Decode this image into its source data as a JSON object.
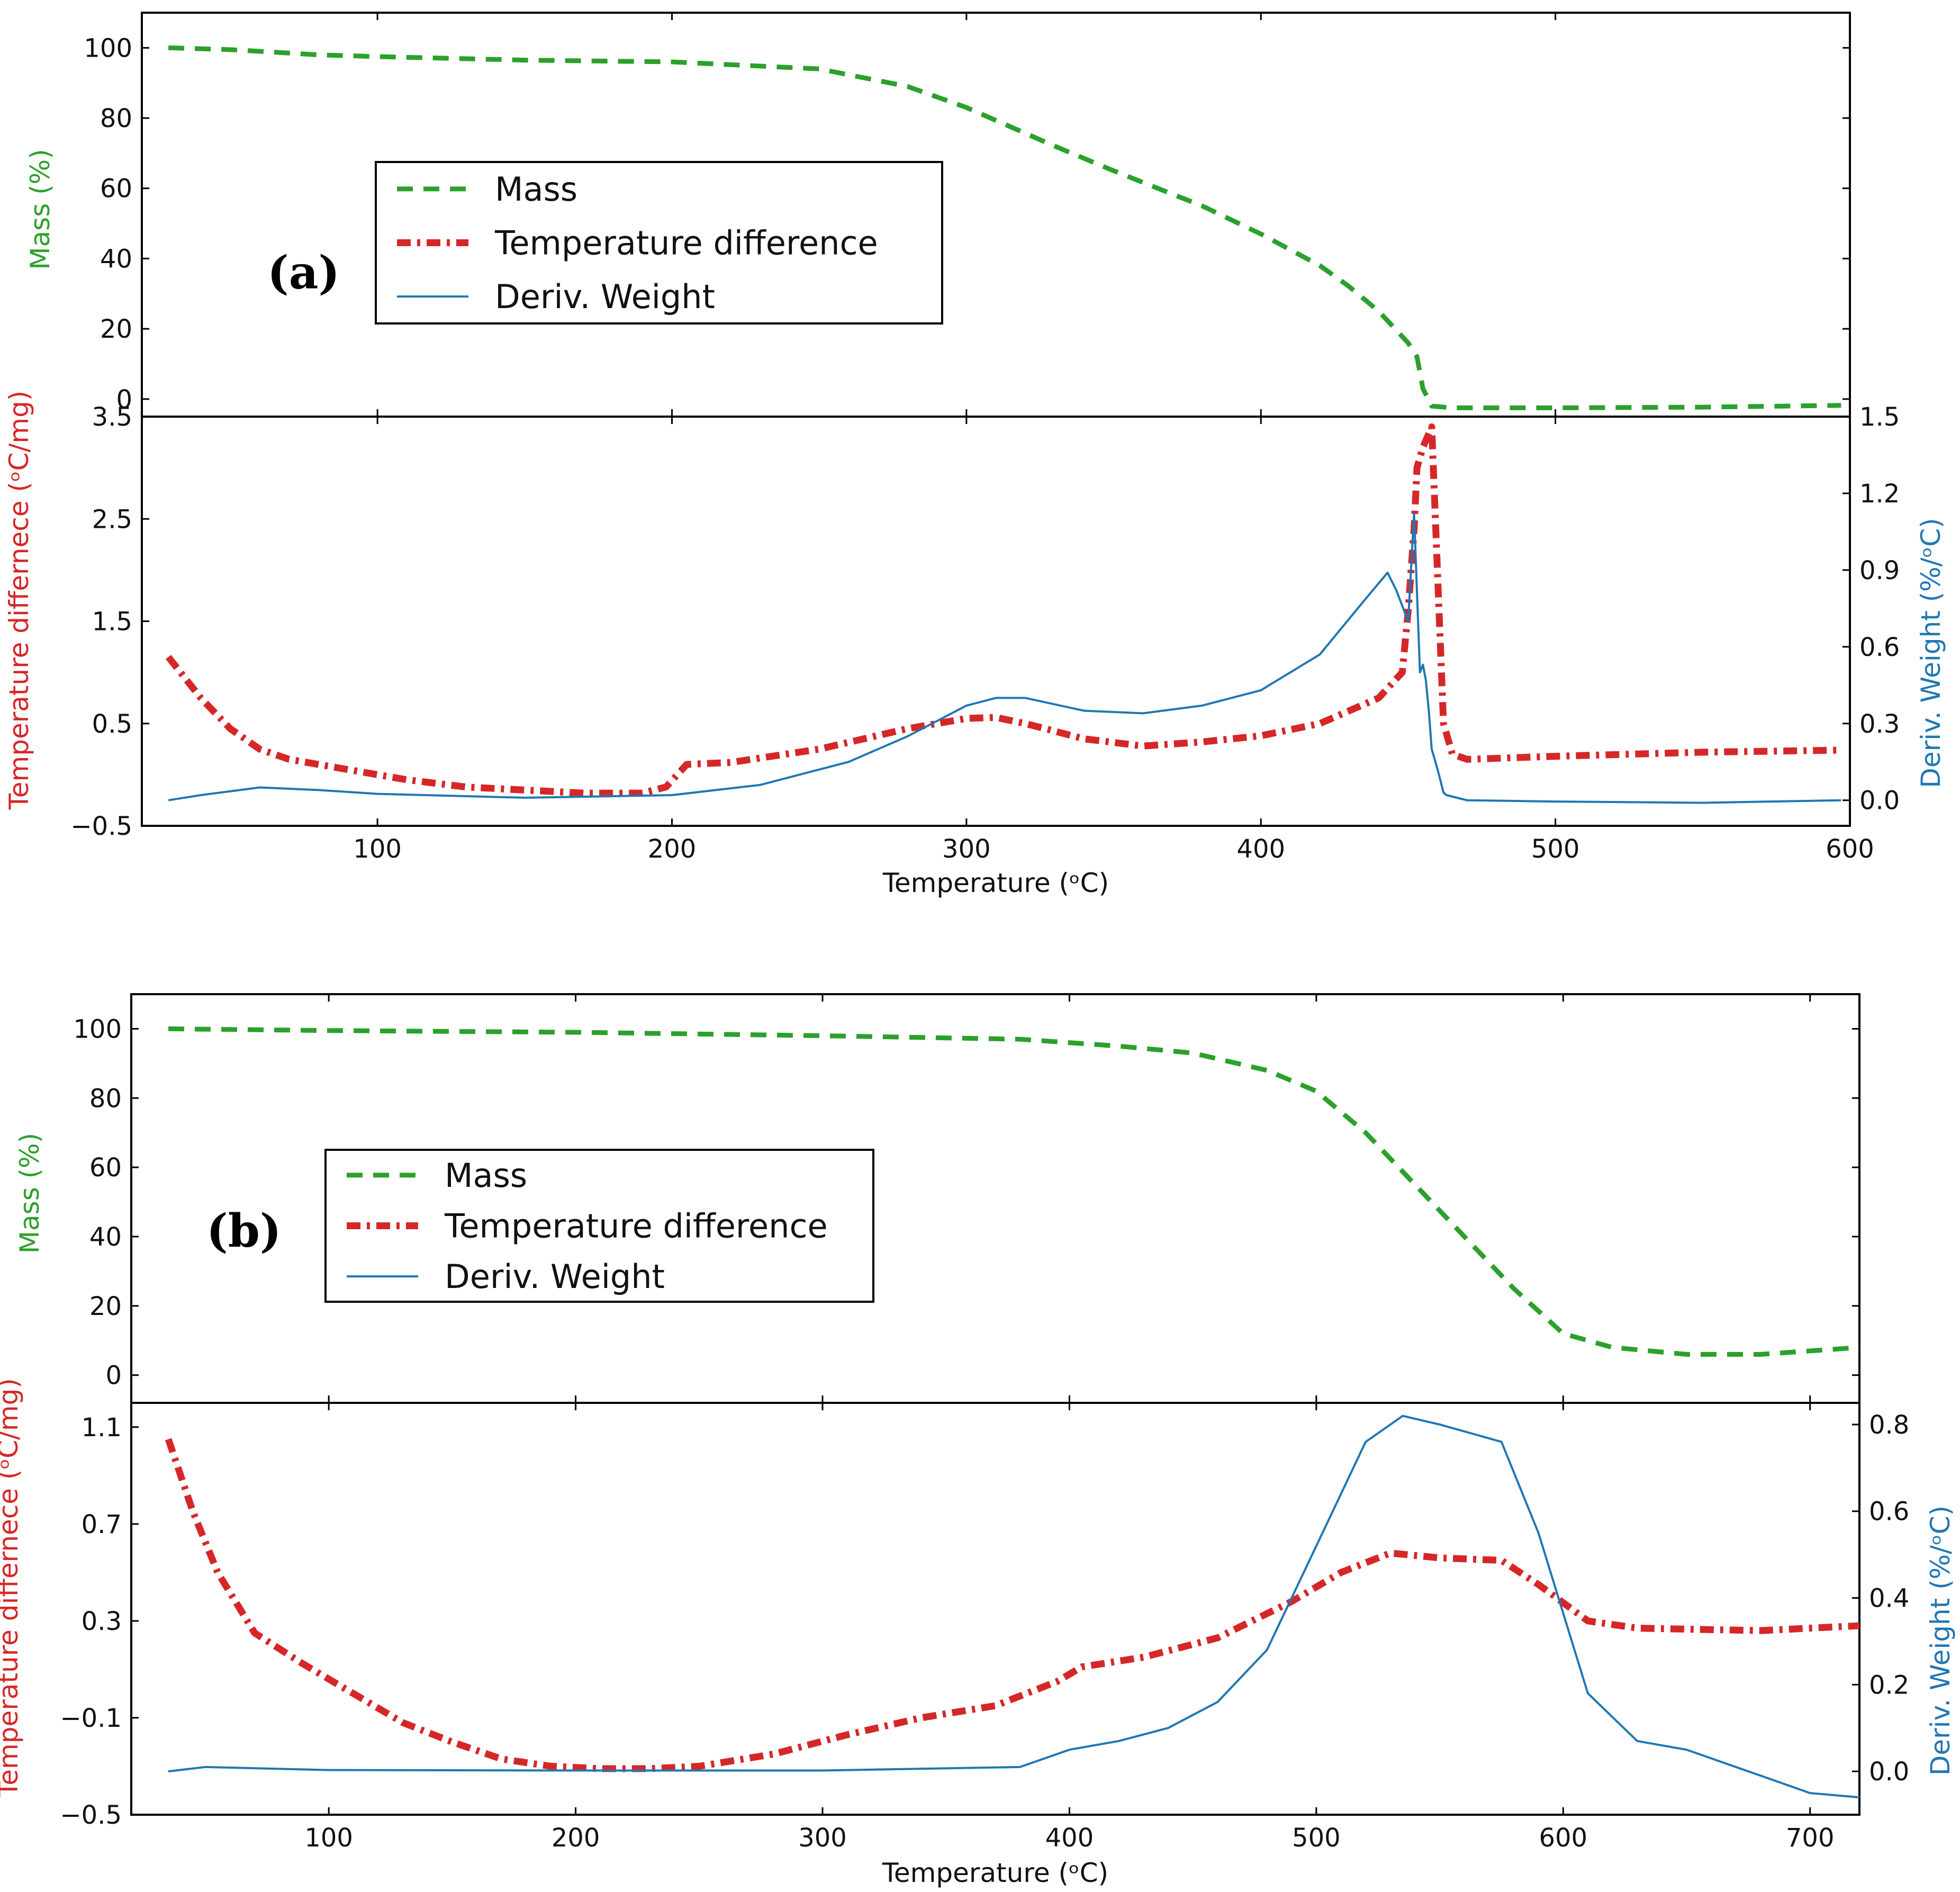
{
  "colors": {
    "mass": "#2ca02c",
    "temperature_difference": "#d62728",
    "deriv_weight": "#1f77b4",
    "axes": "#000000"
  },
  "chart_data": [
    {
      "id": "a",
      "panel_label": "(a)",
      "type": "line",
      "xlabel": "Temperature (ᵒC)",
      "xlim": [
        20,
        600
      ],
      "xticks": [
        100,
        200,
        300,
        400,
        500,
        600
      ],
      "legend": {
        "placement": "upper-left",
        "entries": [
          {
            "label": "Mass",
            "series": "mass",
            "style": "dashed"
          },
          {
            "label": "Temperature difference",
            "series": "temperature_difference",
            "style": "dashdot"
          },
          {
            "label": "Deriv. Weight",
            "series": "deriv_weight",
            "style": "solid"
          }
        ]
      },
      "top": {
        "ylabel": "Mass (%)",
        "ylim": [
          -5,
          110
        ],
        "yticks": [
          0,
          20,
          40,
          60,
          80,
          100
        ],
        "series": [
          {
            "name": "Mass",
            "key": "mass",
            "x": [
              29,
              50,
              80,
              100,
              150,
              200,
              250,
              280,
              300,
              330,
              350,
              380,
              400,
              420,
              430,
              440,
              450,
              453,
              455,
              458,
              465,
              500,
              550,
              597
            ],
            "y": [
              100,
              99.5,
              98,
              97.5,
              96.5,
              96,
              94,
              89,
              83,
              72,
              65,
              55,
              47,
              38,
              32,
              25,
              16,
              12,
              3,
              -2,
              -2.5,
              -2.5,
              -2.3,
              -1.8
            ]
          }
        ]
      },
      "bottom": {
        "left": {
          "ylabel": "Temperature differnece (ᵒC/mg)",
          "ylim": [
            -0.5,
            3.5
          ],
          "yticks": [
            -0.5,
            0.5,
            1.5,
            2.5,
            3.5
          ],
          "ytick_labels": [
            "−0.5",
            "0.5",
            "1.5",
            "2.5",
            "3.5"
          ]
        },
        "right": {
          "ylabel": "Deriv. Weight (%/ᵒC)",
          "ylim": [
            -0.1,
            1.5
          ],
          "yticks": [
            0.0,
            0.3,
            0.6,
            0.9,
            1.2,
            1.5
          ],
          "ytick_labels": [
            "0.0",
            "0.3",
            "0.6",
            "0.9",
            "1.2",
            "1.5"
          ]
        },
        "series": [
          {
            "name": "Temperature difference",
            "key": "temperature_difference",
            "axis": "left",
            "x": [
              29,
              40,
              50,
              60,
              70,
              90,
              110,
              130,
              150,
              170,
              190,
              198,
              205,
              220,
              250,
              280,
              300,
              310,
              320,
              340,
              360,
              380,
              400,
              420,
              440,
              448,
              450,
              452,
              453,
              455,
              458,
              462,
              465,
              470,
              500,
              550,
              597
            ],
            "y": [
              1.15,
              0.75,
              0.45,
              0.25,
              0.15,
              0.05,
              -0.05,
              -0.12,
              -0.15,
              -0.18,
              -0.18,
              -0.12,
              0.1,
              0.12,
              0.25,
              0.45,
              0.55,
              0.56,
              0.5,
              0.35,
              0.28,
              0.32,
              0.38,
              0.5,
              0.75,
              1.0,
              1.6,
              2.4,
              3.0,
              3.2,
              3.4,
              0.5,
              0.2,
              0.15,
              0.18,
              0.22,
              0.24
            ]
          },
          {
            "name": "Deriv. Weight",
            "key": "deriv_weight",
            "axis": "right",
            "x": [
              29,
              40,
              60,
              80,
              100,
              150,
              200,
              230,
              260,
              280,
              300,
              310,
              320,
              340,
              360,
              380,
              400,
              420,
              435,
              443,
              446,
              450,
              452,
              454,
              455,
              456,
              457,
              458,
              460,
              462,
              463,
              470,
              500,
              550,
              597
            ],
            "y": [
              0.0,
              0.02,
              0.05,
              0.04,
              0.025,
              0.01,
              0.02,
              0.06,
              0.15,
              0.25,
              0.37,
              0.4,
              0.4,
              0.35,
              0.34,
              0.37,
              0.43,
              0.57,
              0.78,
              0.89,
              0.82,
              0.7,
              1.12,
              0.5,
              0.53,
              0.47,
              0.35,
              0.2,
              0.12,
              0.03,
              0.02,
              0.0,
              -0.005,
              -0.01,
              0.0
            ]
          }
        ]
      }
    },
    {
      "id": "b",
      "panel_label": "(b)",
      "type": "line",
      "xlabel": "Temperature (ᵒC)",
      "xlim": [
        20,
        720
      ],
      "xticks": [
        100,
        200,
        300,
        400,
        500,
        600,
        700
      ],
      "legend": {
        "placement": "upper-left",
        "entries": [
          {
            "label": "Mass",
            "series": "mass",
            "style": "dashed"
          },
          {
            "label": "Temperature difference",
            "series": "temperature_difference",
            "style": "dashdot"
          },
          {
            "label": "Deriv. Weight",
            "series": "deriv_weight",
            "style": "solid"
          }
        ]
      },
      "top": {
        "ylabel": "Mass (%)",
        "ylim": [
          -8,
          110
        ],
        "yticks": [
          0,
          20,
          40,
          60,
          80,
          100
        ],
        "series": [
          {
            "name": "Mass",
            "key": "mass",
            "x": [
              35,
              100,
              200,
              300,
              380,
              420,
              450,
              480,
              500,
              520,
              540,
              560,
              580,
              600,
              620,
              650,
              680,
              720
            ],
            "y": [
              100,
              99.5,
              99,
              98,
              97,
              95,
              93,
              88,
              82,
              70,
              55,
              40,
              25,
              12,
              8,
              6,
              6,
              8
            ]
          }
        ]
      },
      "bottom": {
        "left": {
          "ylabel": "Temperature differnece (ᵒC/mg)",
          "ylim": [
            -0.5,
            1.2
          ],
          "yticks": [
            -0.5,
            -0.1,
            0.3,
            0.7,
            1.1
          ],
          "ytick_labels": [
            "−0.5",
            "−0.1",
            "0.3",
            "0.7",
            "1.1"
          ]
        },
        "right": {
          "ylabel": "Deriv. Weight (%/ᵒC)",
          "ylim": [
            -0.1,
            0.85
          ],
          "yticks": [
            0.0,
            0.2,
            0.4,
            0.6,
            0.8
          ],
          "ytick_labels": [
            "0.0",
            "0.2",
            "0.4",
            "0.6",
            "0.8"
          ]
        },
        "series": [
          {
            "name": "Temperature difference",
            "key": "temperature_difference",
            "axis": "left",
            "x": [
              35,
              45,
              55,
              70,
              90,
              110,
              130,
              150,
              170,
              190,
              210,
              230,
              250,
              280,
              310,
              340,
              370,
              395,
              405,
              430,
              460,
              490,
              510,
              530,
              550,
              575,
              590,
              610,
              630,
              680,
              720
            ],
            "y": [
              1.05,
              0.75,
              0.5,
              0.25,
              0.12,
              0.0,
              -0.12,
              -0.2,
              -0.27,
              -0.3,
              -0.31,
              -0.31,
              -0.3,
              -0.25,
              -0.17,
              -0.1,
              -0.05,
              0.05,
              0.11,
              0.15,
              0.23,
              0.38,
              0.5,
              0.58,
              0.56,
              0.55,
              0.45,
              0.3,
              0.27,
              0.26,
              0.28
            ]
          },
          {
            "name": "Deriv. Weight",
            "key": "deriv_weight",
            "axis": "right",
            "x": [
              35,
              50,
              100,
              200,
              300,
              380,
              400,
              420,
              440,
              460,
              480,
              500,
              520,
              535,
              550,
              575,
              590,
              610,
              630,
              650,
              680,
              700,
              720
            ],
            "y": [
              0.0,
              0.01,
              0.003,
              0.002,
              0.002,
              0.01,
              0.05,
              0.07,
              0.1,
              0.16,
              0.28,
              0.52,
              0.76,
              0.82,
              0.8,
              0.76,
              0.55,
              0.18,
              0.07,
              0.05,
              -0.01,
              -0.05,
              -0.06
            ]
          }
        ]
      }
    }
  ]
}
